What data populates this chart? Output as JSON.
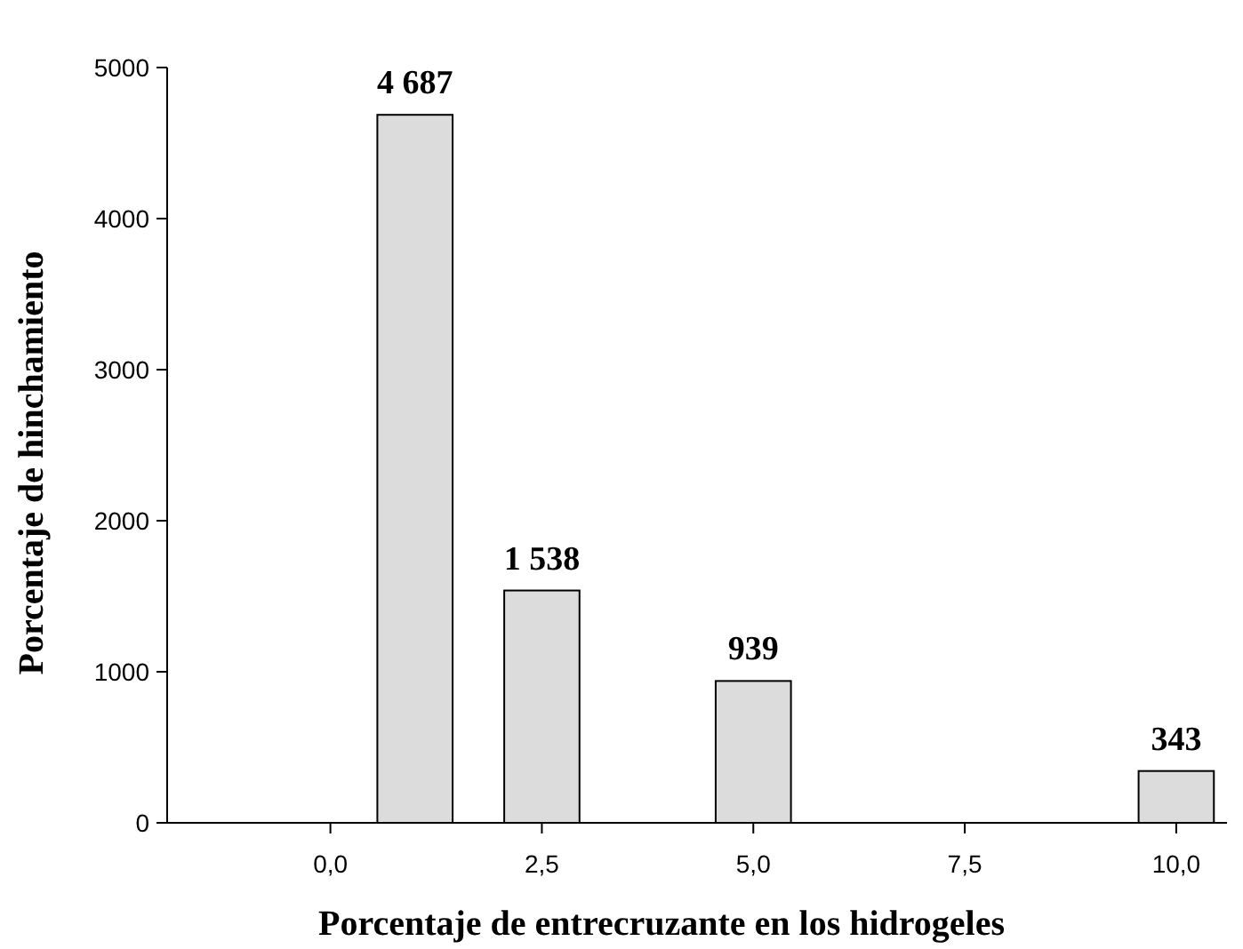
{
  "chart_data": {
    "type": "bar",
    "xlabel": "Porcentaje de entrecruzante en los hidrogeles",
    "ylabel": "Porcentaje de hinchamiento",
    "x": [
      1,
      2.5,
      5,
      10
    ],
    "values": [
      4687,
      1538,
      939,
      343
    ],
    "color": "#dcdcdc",
    "value_labels": [
      "4 687",
      "1 538",
      "939",
      "343"
    ],
    "xlim": [
      -1.93,
      10.6
    ],
    "xticks": [
      {
        "value": 0,
        "label": "0,0"
      },
      {
        "value": 2.5,
        "label": "2,5"
      },
      {
        "value": 5,
        "label": "5,0"
      },
      {
        "value": 7.5,
        "label": "7,5"
      },
      {
        "value": 10,
        "label": "10,0"
      }
    ],
    "ylim": [
      0,
      5000
    ],
    "yticks": [
      0,
      1000,
      2000,
      3000,
      4000,
      5000
    ],
    "grid": false
  }
}
